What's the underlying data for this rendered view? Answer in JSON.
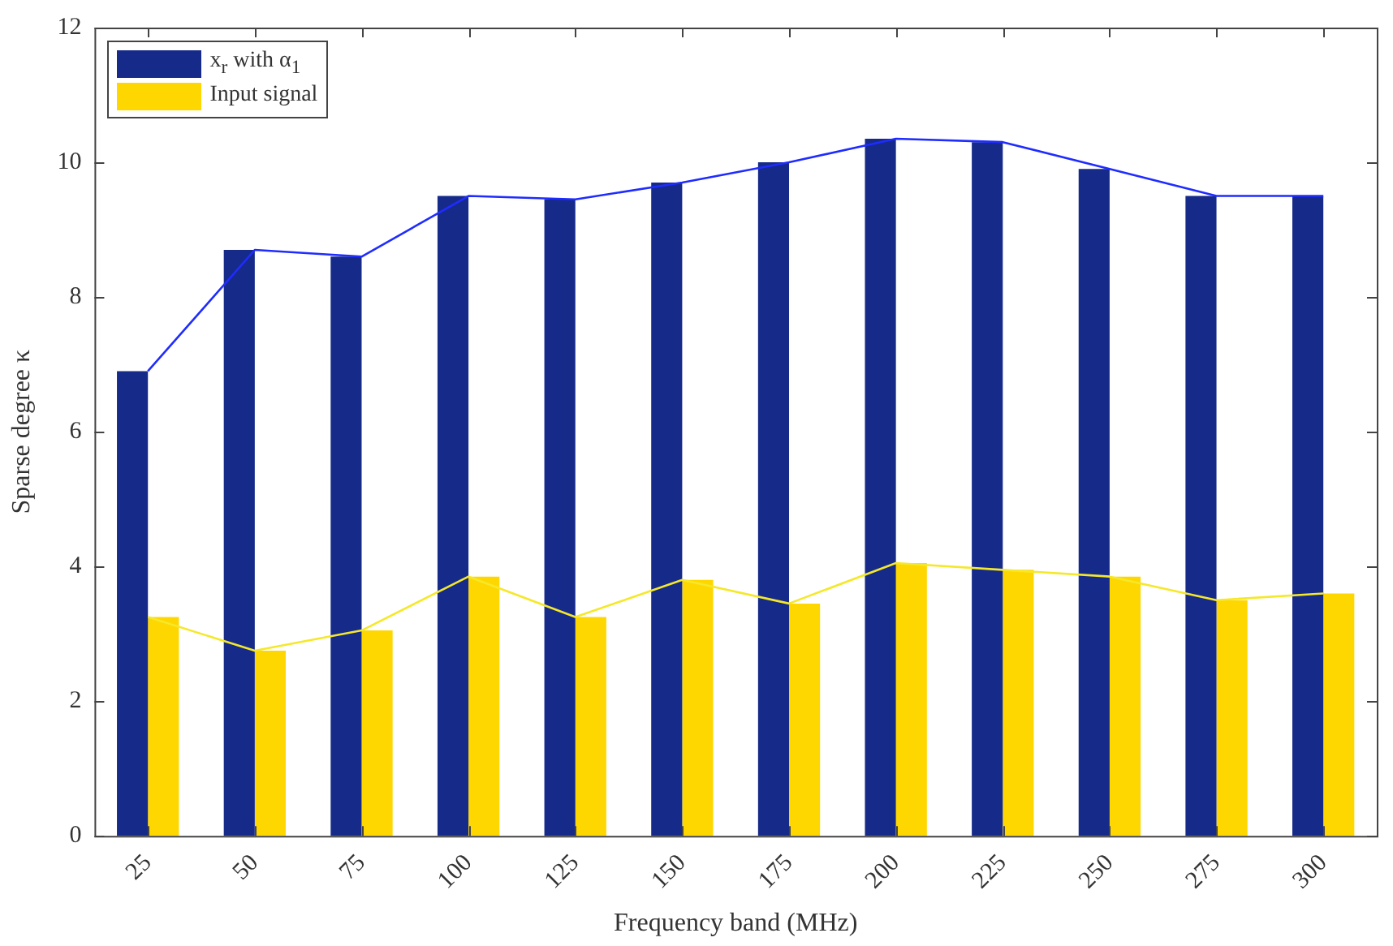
{
  "chart_data": {
    "type": "bar",
    "xlabel": "Frequency band (MHz)",
    "ylabel": "Sparse degree κ",
    "categories": [
      "25",
      "50",
      "75",
      "100",
      "125",
      "150",
      "175",
      "200",
      "225",
      "250",
      "275",
      "300"
    ],
    "series": [
      {
        "name": "x$_{r}$ with α$_{1}$",
        "color": "#162a8a",
        "values": [
          6.9,
          8.7,
          8.6,
          9.5,
          9.45,
          9.7,
          10.0,
          10.35,
          10.3,
          9.9,
          9.5,
          9.5
        ]
      },
      {
        "name": "Input signal",
        "color": "#ffd700",
        "values": [
          3.25,
          2.75,
          3.05,
          3.85,
          3.25,
          3.8,
          3.45,
          4.05,
          3.95,
          3.85,
          3.5,
          3.6
        ]
      },
      {
        "type": "line",
        "color": "#1f2cff",
        "values": [
          6.9,
          8.7,
          8.6,
          9.5,
          9.45,
          9.7,
          10.0,
          10.35,
          10.3,
          9.9,
          9.5,
          9.5
        ]
      },
      {
        "type": "line",
        "color": "#f5e82a",
        "values": [
          3.25,
          2.75,
          3.05,
          3.85,
          3.25,
          3.8,
          3.45,
          4.05,
          3.95,
          3.85,
          3.5,
          3.6
        ]
      }
    ],
    "ylim": [
      0,
      12
    ],
    "yticks": [
      0,
      2,
      4,
      6,
      8,
      10,
      12
    ],
    "grid": false,
    "legend": "top left",
    "marker": "none"
  }
}
